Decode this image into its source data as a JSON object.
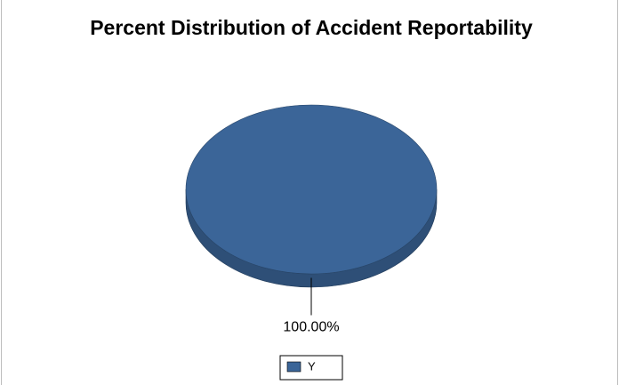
{
  "chart_data": {
    "type": "pie",
    "title": "Percent Distribution of Accident Reportability",
    "categories": [
      "Y"
    ],
    "values": [
      100
    ],
    "value_labels": [
      "100.00%"
    ],
    "colors": [
      "#3b6598"
    ],
    "legend": "bottom"
  }
}
